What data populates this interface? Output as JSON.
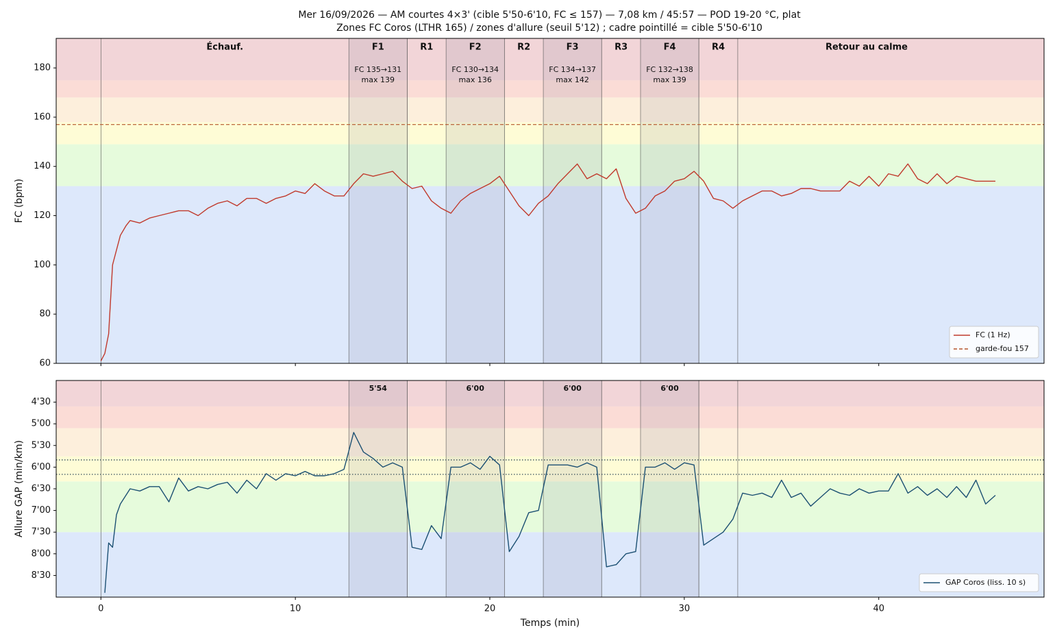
{
  "chart_data": [
    {
      "type": "line",
      "title": "Mer 16/09/2026 — AM courtes 4×3' (cible 5'50-6'10, FC ≤ 157) — 7,08 km / 45:57 — POD 19-20 °C, plat",
      "subtitle": "Zones FC Coros (LTHR 165) / zones d'allure (seuil 5'12) ; cadre pointillé = cible 5'50-6'10",
      "ylabel": "FC (bpm)",
      "xlim": [
        -2.3,
        48.5
      ],
      "xticks": [
        0,
        10,
        20,
        30,
        40
      ],
      "ylim": [
        60,
        192
      ],
      "yticks": [
        60,
        80,
        100,
        120,
        140,
        160,
        180
      ],
      "legend": "lower right",
      "zones": [
        {
          "from": 60,
          "to": 132,
          "color": "#dde8fb"
        },
        {
          "from": 132,
          "to": 149,
          "color": "#e6fbdc"
        },
        {
          "from": 149,
          "to": 158,
          "color": "#fefcd6"
        },
        {
          "from": 158,
          "to": 168,
          "color": "#fdefdc"
        },
        {
          "from": 168,
          "to": 175,
          "color": "#fbdcd6"
        },
        {
          "from": 175,
          "to": 192,
          "color": "#f2d5d8"
        }
      ],
      "segments": [
        {
          "label": "Échauf.",
          "start": 0,
          "end": 12.75
        },
        {
          "label": "F1",
          "start": 12.75,
          "end": 15.75,
          "effort": true,
          "notes": [
            "FC 135→131",
            "max 139"
          ]
        },
        {
          "label": "R1",
          "start": 15.75,
          "end": 17.75
        },
        {
          "label": "F2",
          "start": 17.75,
          "end": 20.75,
          "effort": true,
          "notes": [
            "FC 130→134",
            "max 136"
          ]
        },
        {
          "label": "R2",
          "start": 20.75,
          "end": 22.75
        },
        {
          "label": "F3",
          "start": 22.75,
          "end": 25.75,
          "effort": true,
          "notes": [
            "FC 134→137",
            "max 142"
          ]
        },
        {
          "label": "R3",
          "start": 25.75,
          "end": 27.75
        },
        {
          "label": "F4",
          "start": 27.75,
          "end": 30.75,
          "effort": true,
          "notes": [
            "FC 132→138",
            "max 139"
          ]
        },
        {
          "label": "R4",
          "start": 30.75,
          "end": 32.75
        },
        {
          "label": "Retour au calme",
          "start": 32.75,
          "end": 46
        }
      ],
      "reference_lines": [
        {
          "name": "garde-fou 157",
          "value": 157,
          "color": "#b5542a",
          "dash": "5,3"
        }
      ],
      "x": [
        0,
        0.2,
        0.4,
        0.6,
        0.8,
        1,
        1.3,
        1.5,
        2,
        2.5,
        3,
        3.5,
        4,
        4.5,
        5,
        5.5,
        6,
        6.5,
        7,
        7.5,
        8,
        8.5,
        9,
        9.5,
        10,
        10.5,
        11,
        11.5,
        12,
        12.5,
        13,
        13.5,
        14,
        14.5,
        15,
        15.5,
        16,
        16.5,
        17,
        17.5,
        18,
        18.5,
        19,
        19.5,
        20,
        20.5,
        21,
        21.5,
        22,
        22.5,
        23,
        23.5,
        24,
        24.5,
        25,
        25.5,
        26,
        26.5,
        27,
        27.5,
        28,
        28.5,
        29,
        29.5,
        30,
        30.5,
        31,
        31.5,
        32,
        32.5,
        33,
        33.5,
        34,
        34.5,
        35,
        35.5,
        36,
        36.5,
        37,
        37.5,
        38,
        38.5,
        39,
        39.5,
        40,
        40.5,
        41,
        41.5,
        42,
        42.5,
        43,
        43.5,
        44,
        44.5,
        45,
        45.5,
        46
      ],
      "series": [
        {
          "name": "FC (1 Hz)",
          "color": "#c0392b",
          "values": [
            61,
            64,
            72,
            100,
            106,
            112,
            116,
            118,
            117,
            119,
            120,
            121,
            122,
            122,
            120,
            123,
            125,
            126,
            124,
            127,
            127,
            125,
            127,
            128,
            130,
            129,
            133,
            130,
            128,
            128,
            133,
            137,
            136,
            137,
            138,
            134,
            131,
            132,
            126,
            123,
            121,
            126,
            129,
            131,
            133,
            136,
            130,
            124,
            120,
            125,
            128,
            133,
            137,
            141,
            135,
            137,
            135,
            139,
            127,
            121,
            123,
            128,
            130,
            134,
            135,
            138,
            134,
            127,
            126,
            123,
            126,
            128,
            130,
            130,
            128,
            129,
            131,
            131,
            130,
            130,
            130,
            134,
            132,
            136,
            132,
            137,
            136,
            141,
            135,
            133,
            137,
            133,
            136,
            135,
            134,
            134,
            134
          ]
        }
      ]
    },
    {
      "type": "line",
      "ylabel": "Allure GAP (min/km)",
      "xlabel": "Temps (min)",
      "xlim": [
        -2.3,
        48.5
      ],
      "xticks": [
        0,
        10,
        20,
        30,
        40
      ],
      "ylim": [
        9.0,
        4.0
      ],
      "yticks": [
        {
          "value": 4.5,
          "label": "4'30"
        },
        {
          "value": 5,
          "label": "5'00"
        },
        {
          "value": 5.5,
          "label": "5'30"
        },
        {
          "value": 6,
          "label": "6'00"
        },
        {
          "value": 6.5,
          "label": "6'30"
        },
        {
          "value": 7,
          "label": "7'00"
        },
        {
          "value": 7.5,
          "label": "7'30"
        },
        {
          "value": 8,
          "label": "8'00"
        },
        {
          "value": 8.5,
          "label": "8'30"
        }
      ],
      "legend": "lower right",
      "zones": [
        {
          "from": 9.0,
          "to": 7.5,
          "color": "#dde8fb"
        },
        {
          "from": 7.5,
          "to": 6.33,
          "color": "#e6fbdc"
        },
        {
          "from": 6.33,
          "to": 5.75,
          "color": "#fefcd6"
        },
        {
          "from": 5.75,
          "to": 5.1,
          "color": "#fdefdc"
        },
        {
          "from": 5.1,
          "to": 4.6,
          "color": "#fbdcd6"
        },
        {
          "from": 4.6,
          "to": 4.0,
          "color": "#f2d5d8"
        }
      ],
      "effort_paces": [
        "5'54",
        "6'00",
        "6'00",
        "6'00"
      ],
      "reference_lines": [
        {
          "value": 5.833,
          "color": "#1f3a4d",
          "dash": "1.5,2.5"
        },
        {
          "value": 6.167,
          "color": "#1f3a4d",
          "dash": "1.5,2.5"
        }
      ],
      "x": [
        0.2,
        0.4,
        0.6,
        0.8,
        1,
        1.5,
        2,
        2.5,
        3,
        3.5,
        4,
        4.5,
        5,
        5.5,
        6,
        6.5,
        7,
        7.5,
        8,
        8.5,
        9,
        9.5,
        10,
        10.5,
        11,
        11.5,
        12,
        12.5,
        13,
        13.5,
        14,
        14.5,
        15,
        15.5,
        16,
        16.5,
        17,
        17.5,
        18,
        18.5,
        19,
        19.5,
        20,
        20.5,
        21,
        21.5,
        22,
        22.5,
        23,
        23.5,
        24,
        24.5,
        25,
        25.5,
        26,
        26.5,
        27,
        27.5,
        28,
        28.5,
        29,
        29.5,
        30,
        30.5,
        31,
        31.5,
        32,
        32.5,
        33,
        33.5,
        34,
        34.5,
        35,
        35.5,
        36,
        36.5,
        37,
        37.5,
        38,
        38.5,
        39,
        39.5,
        40,
        40.5,
        41,
        41.5,
        42,
        42.5,
        43,
        43.5,
        44,
        44.5,
        45,
        45.5,
        46
      ],
      "series": [
        {
          "name": "GAP Coros (liss. 10 s)",
          "color": "#1b4f72",
          "values": [
            8.9,
            7.75,
            7.85,
            7.1,
            6.85,
            6.5,
            6.55,
            6.45,
            6.45,
            6.8,
            6.25,
            6.55,
            6.45,
            6.5,
            6.4,
            6.35,
            6.6,
            6.3,
            6.5,
            6.15,
            6.3,
            6.15,
            6.2,
            6.1,
            6.2,
            6.2,
            6.15,
            6.05,
            5.2,
            5.65,
            5.8,
            6.0,
            5.9,
            6.0,
            7.85,
            7.9,
            7.35,
            7.65,
            6.0,
            6.0,
            5.9,
            6.05,
            5.75,
            5.95,
            7.95,
            7.6,
            7.05,
            7.0,
            5.95,
            5.95,
            5.95,
            6.0,
            5.9,
            6.0,
            8.3,
            8.25,
            8.0,
            7.95,
            6.0,
            6.0,
            5.9,
            6.05,
            5.9,
            5.95,
            7.8,
            7.65,
            7.5,
            7.2,
            6.6,
            6.65,
            6.6,
            6.7,
            6.3,
            6.7,
            6.6,
            6.9,
            6.7,
            6.5,
            6.6,
            6.65,
            6.5,
            6.6,
            6.55,
            6.55,
            6.15,
            6.6,
            6.45,
            6.65,
            6.5,
            6.7,
            6.45,
            6.7,
            6.3,
            6.85,
            6.65
          ]
        }
      ]
    }
  ]
}
